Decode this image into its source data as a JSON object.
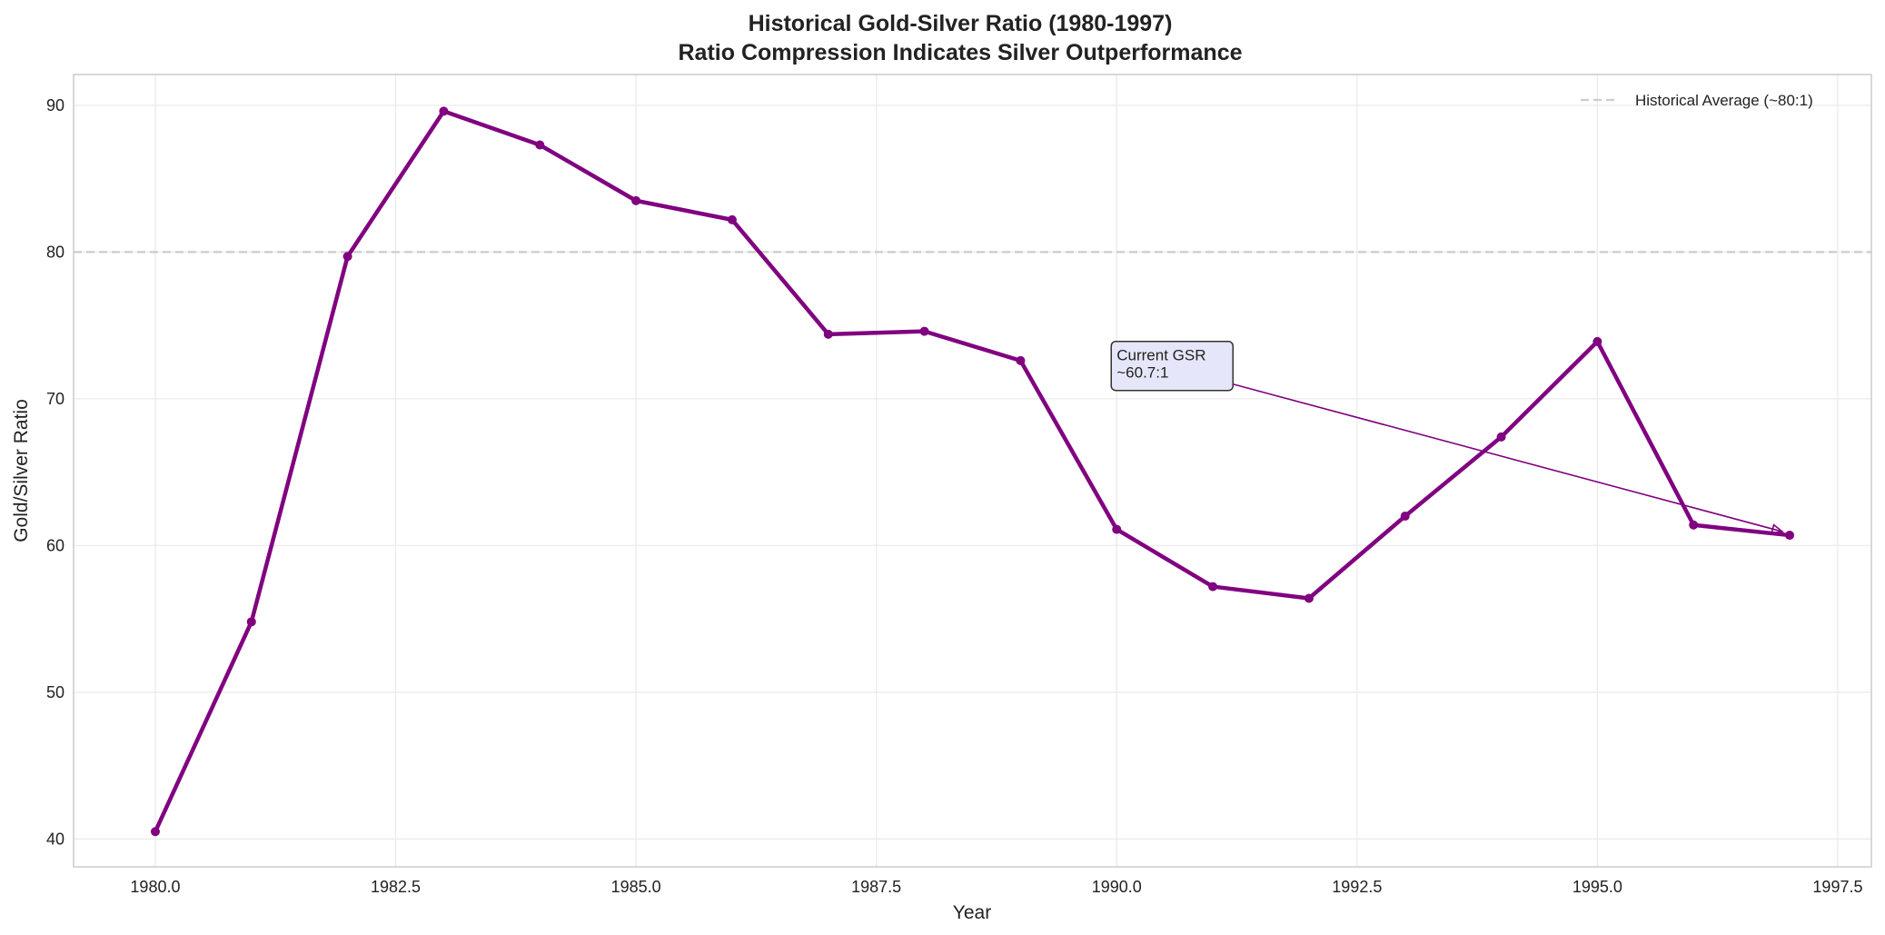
{
  "chart_data": {
    "type": "line",
    "title": "Historical Gold-Silver Ratio (1980-1997)",
    "subtitle": "Ratio Compression Indicates Silver Outperformance",
    "xlabel": "Year",
    "ylabel": "Gold/Silver Ratio",
    "xlim": [
      1979.15,
      1997.85
    ],
    "ylim": [
      38.1,
      92.1
    ],
    "grid": true,
    "x_ticks": [
      "1980.0",
      "1982.5",
      "1985.0",
      "1987.5",
      "1990.0",
      "1992.5",
      "1995.0",
      "1997.5"
    ],
    "x_tick_values": [
      1980,
      1982.5,
      1985,
      1987.5,
      1990,
      1992.5,
      1995,
      1997.5
    ],
    "y_ticks": [
      "40",
      "50",
      "60",
      "70",
      "80",
      "90"
    ],
    "y_tick_values": [
      40,
      50,
      60,
      70,
      80,
      90
    ],
    "series": [
      {
        "color": "#800080",
        "x": [
          1980,
          1981,
          1982,
          1983,
          1984,
          1985,
          1986,
          1987,
          1988,
          1989,
          1990,
          1991,
          1992,
          1993,
          1994,
          1995,
          1996,
          1997
        ],
        "y": [
          40.5,
          54.8,
          79.7,
          89.6,
          87.3,
          83.5,
          82.2,
          74.4,
          74.6,
          72.6,
          61.1,
          57.2,
          56.4,
          62.0,
          67.4,
          73.9,
          61.4,
          60.7
        ]
      }
    ],
    "reference_line": {
      "name": "Historical Average (~80:1)",
      "y": 80,
      "color": "#cccccc",
      "style": "dashed"
    },
    "legend": {
      "placement": "top-right",
      "entries": [
        "Historical Average (~80:1)"
      ]
    },
    "annotation": {
      "line1": "Current GSR",
      "line2": "~60.7:1",
      "text_at": [
        1990,
        71
      ],
      "arrow_to": [
        1997,
        60.7
      ],
      "box_color": "#e6e6fa"
    }
  }
}
